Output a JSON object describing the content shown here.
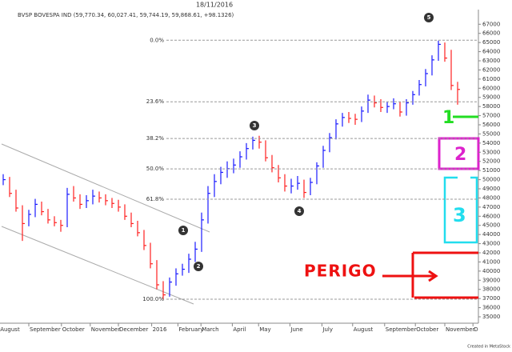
{
  "title": "18/11/2016",
  "footer": "Created in MetaStock",
  "chart_data": {
    "type": "ohlc",
    "title": "BVSP BOVESPA IND (59,770.34, 60,027.41, 59,744.19, 59,868.61, +98.1326)",
    "up_color": "#1a1aff",
    "down_color": "#ff2020",
    "high": [
      50600,
      50300,
      48900,
      47200,
      46700,
      47900,
      47600,
      46800,
      46000,
      45600,
      49100,
      49300,
      48400,
      48300,
      48900,
      48700,
      48400,
      48000,
      47800,
      47300,
      46400,
      45500,
      44500,
      43100,
      41200,
      38900,
      39300,
      40300,
      40800,
      41900,
      43200,
      46400,
      49300,
      50600,
      51400,
      52000,
      52300,
      53100,
      54000,
      54700,
      54800,
      54300,
      52700,
      51600,
      50600,
      50100,
      50400,
      50000,
      50200,
      51900,
      53700,
      55100,
      56600,
      57300,
      57400,
      57200,
      58000,
      59300,
      59200,
      58800,
      58500,
      58900,
      58500,
      58800,
      59700,
      60900,
      62100,
      63600,
      65200,
      65000,
      64200,
      60700
    ],
    "low": [
      49400,
      48100,
      46500,
      43300,
      44900,
      45900,
      46100,
      45200,
      44900,
      44300,
      44800,
      47600,
      46800,
      46900,
      47300,
      47500,
      47200,
      46900,
      46500,
      45600,
      44800,
      43800,
      42300,
      40300,
      38000,
      36900,
      37200,
      38400,
      39500,
      39800,
      41000,
      42100,
      45200,
      48100,
      49500,
      50200,
      50700,
      51300,
      52200,
      53300,
      53400,
      52000,
      50800,
      49700,
      48700,
      48500,
      48900,
      48000,
      48300,
      49500,
      51300,
      53000,
      54400,
      55800,
      56200,
      56000,
      56300,
      57300,
      57900,
      57400,
      57300,
      57700,
      56900,
      57000,
      58200,
      59200,
      60200,
      61400,
      63000,
      62900,
      59800,
      58200
    ],
    "close": [
      50000,
      48500,
      46900,
      45200,
      46200,
      47300,
      46500,
      45600,
      45300,
      45000,
      48400,
      48000,
      47300,
      47700,
      48200,
      48000,
      47700,
      47400,
      47000,
      46000,
      45200,
      44200,
      42800,
      40800,
      38500,
      37400,
      38800,
      39700,
      40200,
      41300,
      42400,
      45600,
      48500,
      49800,
      50800,
      51200,
      51600,
      52500,
      53400,
      54300,
      54100,
      52400,
      51300,
      50200,
      49300,
      49300,
      49600,
      48600,
      49700,
      51500,
      53200,
      54600,
      56100,
      56800,
      56700,
      56600,
      57500,
      58700,
      58400,
      57900,
      58000,
      58300,
      57400,
      58400,
      59300,
      60400,
      61600,
      63100,
      64800,
      63300,
      60300,
      59869
    ],
    "xlim": [
      -0.5,
      74.25
    ],
    "xticks": [
      {
        "value": -0.6,
        "label": "August"
      },
      {
        "value": 4,
        "label": "September"
      },
      {
        "value": 9.1,
        "label": "October"
      },
      {
        "value": 13.6,
        "label": "November"
      },
      {
        "value": 18,
        "label": "December"
      },
      {
        "value": 23.2,
        "label": "2016"
      },
      {
        "value": 27.3,
        "label": "February"
      },
      {
        "value": 30.9,
        "label": "March"
      },
      {
        "value": 35.8,
        "label": "April"
      },
      {
        "value": 39.9,
        "label": "May"
      },
      {
        "value": 44.8,
        "label": "June"
      },
      {
        "value": 49.8,
        "label": "July"
      },
      {
        "value": 54.6,
        "label": "August"
      },
      {
        "value": 59.6,
        "label": "September"
      },
      {
        "value": 64.4,
        "label": "October"
      },
      {
        "value": 69,
        "label": "November"
      },
      {
        "value": 73.4,
        "label": "December"
      }
    ],
    "ylim": [
      34300,
      68600
    ],
    "yticks": [
      35000,
      36000,
      37000,
      38000,
      39000,
      40000,
      41000,
      42000,
      43000,
      44000,
      45000,
      46000,
      47000,
      48000,
      49000,
      50000,
      51000,
      52000,
      53000,
      54000,
      55000,
      56000,
      57000,
      58000,
      59000,
      60000,
      61000,
      62000,
      63000,
      64000,
      65000,
      66000,
      67000
    ],
    "fib_levels": [
      {
        "value": 65250,
        "label": "0.0%"
      },
      {
        "value": 58520,
        "label": "23.6%"
      },
      {
        "value": 54500,
        "label": "38.2%"
      },
      {
        "value": 51180,
        "label": "50.0%"
      },
      {
        "value": 47860,
        "label": "61.8%"
      },
      {
        "value": 36930,
        "label": "100.0%"
      }
    ],
    "wave_labels": [
      "1",
      "2",
      "3",
      "4",
      "5"
    ],
    "notes": [
      "1",
      "2",
      "3",
      "PERIGO"
    ]
  }
}
